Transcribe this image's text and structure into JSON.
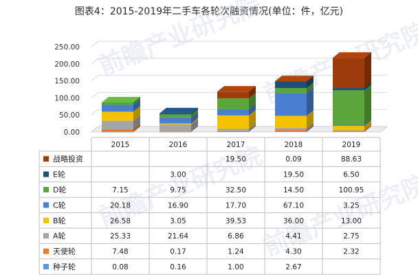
{
  "title": "图表4：2015-2019年二手车各轮次融资情况(单位：件，亿元)",
  "colors": {
    "战略投资": "#9c3c0a",
    "E轮": "#1f4e79",
    "D轮": "#5aa63a",
    "C轮": "#4a7fd0",
    "B轮": "#f5c200",
    "A轮": "#a5a5a5",
    "天使轮": "#ea7b2c",
    "种子轮": "#5b9bd5"
  },
  "watermark_text": "前瞻产业研究院",
  "chart_data": {
    "type": "bar",
    "stacked": true,
    "title": "图表4：2015-2019年二手车各轮次融资情况(单位：件，亿元)",
    "categories": [
      "2015",
      "2016",
      "2017",
      "2018",
      "2019"
    ],
    "yticks": [
      "0.00",
      "50.00",
      "100.00",
      "150.00",
      "200.00",
      "250.00"
    ],
    "ylim": [
      0,
      250
    ],
    "grid": true,
    "legend_placement": "data-table-left",
    "series": [
      {
        "name": "种子轮",
        "values": [
          0.08,
          0.16,
          1.0,
          2.67,
          null
        ],
        "labels": [
          "0.08",
          "0.16",
          "1.00",
          "2.67",
          ""
        ]
      },
      {
        "name": "天使轮",
        "values": [
          7.48,
          0.17,
          1.24,
          4.3,
          2.32
        ],
        "labels": [
          "7.48",
          "0.17",
          "1.24",
          "4.30",
          "2.32"
        ]
      },
      {
        "name": "A轮",
        "values": [
          25.33,
          21.64,
          6.86,
          4.41,
          2.75
        ],
        "labels": [
          "25.33",
          "21.64",
          "6.86",
          "4.41",
          "2.75"
        ]
      },
      {
        "name": "B轮",
        "values": [
          26.58,
          3.05,
          39.53,
          36.0,
          13.0
        ],
        "labels": [
          "26.58",
          "3.05",
          "39.53",
          "36.00",
          "13.00"
        ]
      },
      {
        "name": "C轮",
        "values": [
          20.18,
          16.9,
          17.7,
          67.1,
          3.25
        ],
        "labels": [
          "20.18",
          "16.90",
          "17.70",
          "67.10",
          "3.25"
        ]
      },
      {
        "name": "D轮",
        "values": [
          7.15,
          9.75,
          32.5,
          14.5,
          100.95
        ],
        "labels": [
          "7.15",
          "9.75",
          "32.50",
          "14.50",
          "100.95"
        ]
      },
      {
        "name": "E轮",
        "values": [
          null,
          3.0,
          null,
          19.5,
          6.5
        ],
        "labels": [
          "",
          "3.00",
          "",
          "19.50",
          "6.50"
        ]
      },
      {
        "name": "战略投资",
        "values": [
          null,
          null,
          19.5,
          0.09,
          88.63
        ],
        "labels": [
          "",
          "",
          "19.50",
          "0.09",
          "88.63"
        ]
      }
    ]
  }
}
